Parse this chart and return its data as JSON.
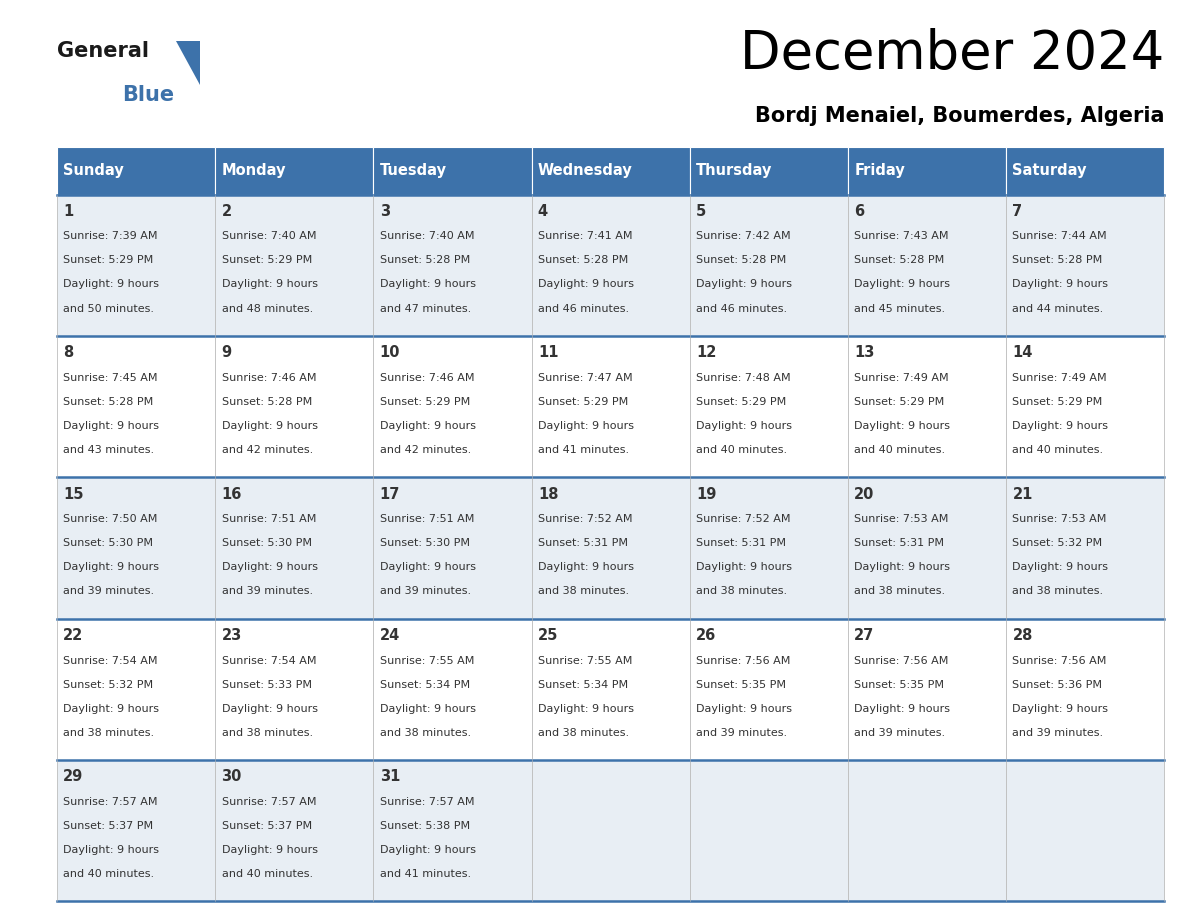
{
  "title": "December 2024",
  "subtitle": "Bordj Menaiel, Boumerdes, Algeria",
  "header_color": "#3d72aa",
  "header_text_color": "#ffffff",
  "cell_bg_even": "#e8eef4",
  "cell_bg_odd": "#ffffff",
  "border_color": "#3d72aa",
  "text_color": "#333333",
  "days_of_week": [
    "Sunday",
    "Monday",
    "Tuesday",
    "Wednesday",
    "Thursday",
    "Friday",
    "Saturday"
  ],
  "weeks": [
    [
      {
        "day": 1,
        "sunrise": "7:39 AM",
        "sunset": "5:29 PM",
        "daylight": "9 hours and 50 minutes."
      },
      {
        "day": 2,
        "sunrise": "7:40 AM",
        "sunset": "5:29 PM",
        "daylight": "9 hours and 48 minutes."
      },
      {
        "day": 3,
        "sunrise": "7:40 AM",
        "sunset": "5:28 PM",
        "daylight": "9 hours and 47 minutes."
      },
      {
        "day": 4,
        "sunrise": "7:41 AM",
        "sunset": "5:28 PM",
        "daylight": "9 hours and 46 minutes."
      },
      {
        "day": 5,
        "sunrise": "7:42 AM",
        "sunset": "5:28 PM",
        "daylight": "9 hours and 46 minutes."
      },
      {
        "day": 6,
        "sunrise": "7:43 AM",
        "sunset": "5:28 PM",
        "daylight": "9 hours and 45 minutes."
      },
      {
        "day": 7,
        "sunrise": "7:44 AM",
        "sunset": "5:28 PM",
        "daylight": "9 hours and 44 minutes."
      }
    ],
    [
      {
        "day": 8,
        "sunrise": "7:45 AM",
        "sunset": "5:28 PM",
        "daylight": "9 hours and 43 minutes."
      },
      {
        "day": 9,
        "sunrise": "7:46 AM",
        "sunset": "5:28 PM",
        "daylight": "9 hours and 42 minutes."
      },
      {
        "day": 10,
        "sunrise": "7:46 AM",
        "sunset": "5:29 PM",
        "daylight": "9 hours and 42 minutes."
      },
      {
        "day": 11,
        "sunrise": "7:47 AM",
        "sunset": "5:29 PM",
        "daylight": "9 hours and 41 minutes."
      },
      {
        "day": 12,
        "sunrise": "7:48 AM",
        "sunset": "5:29 PM",
        "daylight": "9 hours and 40 minutes."
      },
      {
        "day": 13,
        "sunrise": "7:49 AM",
        "sunset": "5:29 PM",
        "daylight": "9 hours and 40 minutes."
      },
      {
        "day": 14,
        "sunrise": "7:49 AM",
        "sunset": "5:29 PM",
        "daylight": "9 hours and 40 minutes."
      }
    ],
    [
      {
        "day": 15,
        "sunrise": "7:50 AM",
        "sunset": "5:30 PM",
        "daylight": "9 hours and 39 minutes."
      },
      {
        "day": 16,
        "sunrise": "7:51 AM",
        "sunset": "5:30 PM",
        "daylight": "9 hours and 39 minutes."
      },
      {
        "day": 17,
        "sunrise": "7:51 AM",
        "sunset": "5:30 PM",
        "daylight": "9 hours and 39 minutes."
      },
      {
        "day": 18,
        "sunrise": "7:52 AM",
        "sunset": "5:31 PM",
        "daylight": "9 hours and 38 minutes."
      },
      {
        "day": 19,
        "sunrise": "7:52 AM",
        "sunset": "5:31 PM",
        "daylight": "9 hours and 38 minutes."
      },
      {
        "day": 20,
        "sunrise": "7:53 AM",
        "sunset": "5:31 PM",
        "daylight": "9 hours and 38 minutes."
      },
      {
        "day": 21,
        "sunrise": "7:53 AM",
        "sunset": "5:32 PM",
        "daylight": "9 hours and 38 minutes."
      }
    ],
    [
      {
        "day": 22,
        "sunrise": "7:54 AM",
        "sunset": "5:32 PM",
        "daylight": "9 hours and 38 minutes."
      },
      {
        "day": 23,
        "sunrise": "7:54 AM",
        "sunset": "5:33 PM",
        "daylight": "9 hours and 38 minutes."
      },
      {
        "day": 24,
        "sunrise": "7:55 AM",
        "sunset": "5:34 PM",
        "daylight": "9 hours and 38 minutes."
      },
      {
        "day": 25,
        "sunrise": "7:55 AM",
        "sunset": "5:34 PM",
        "daylight": "9 hours and 38 minutes."
      },
      {
        "day": 26,
        "sunrise": "7:56 AM",
        "sunset": "5:35 PM",
        "daylight": "9 hours and 39 minutes."
      },
      {
        "day": 27,
        "sunrise": "7:56 AM",
        "sunset": "5:35 PM",
        "daylight": "9 hours and 39 minutes."
      },
      {
        "day": 28,
        "sunrise": "7:56 AM",
        "sunset": "5:36 PM",
        "daylight": "9 hours and 39 minutes."
      }
    ],
    [
      {
        "day": 29,
        "sunrise": "7:57 AM",
        "sunset": "5:37 PM",
        "daylight": "9 hours and 40 minutes."
      },
      {
        "day": 30,
        "sunrise": "7:57 AM",
        "sunset": "5:37 PM",
        "daylight": "9 hours and 40 minutes."
      },
      {
        "day": 31,
        "sunrise": "7:57 AM",
        "sunset": "5:38 PM",
        "daylight": "9 hours and 41 minutes."
      },
      null,
      null,
      null,
      null
    ]
  ],
  "logo_general_color": "#1a1a1a",
  "logo_blue_color": "#3d72aa",
  "logo_triangle_color": "#3d72aa"
}
